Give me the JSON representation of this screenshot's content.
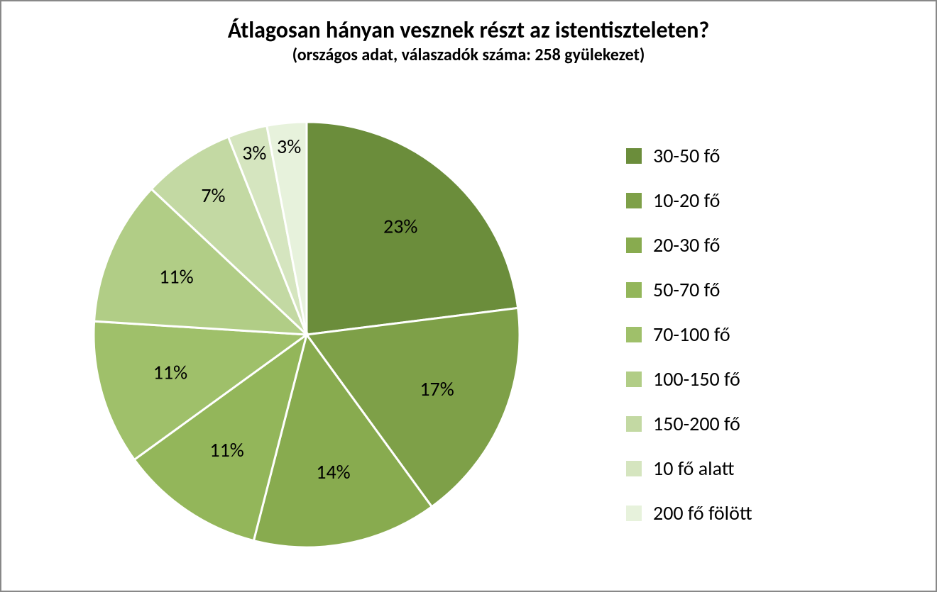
{
  "title": {
    "main": "Átlagosan hányan vesznek részt az istentiszteleten?",
    "sub": "(országos adat, válaszadók száma: 258 gyülekezet)",
    "main_fontsize": 32,
    "sub_fontsize": 24,
    "font_weight": 700,
    "color": "#000000"
  },
  "chart": {
    "type": "pie",
    "background_color": "#ffffff",
    "frame_border_color": "#888888",
    "slice_border_color": "#ffffff",
    "slice_border_width": 3,
    "label_fontsize": 28,
    "legend_fontsize": 28,
    "legend_swatch_size": 22,
    "slices": [
      {
        "label": "30-50 fő",
        "value": 23,
        "color": "#6b8d3b",
        "display": "23%"
      },
      {
        "label": "10-20 fő",
        "value": 17,
        "color": "#7ea048",
        "display": "17%"
      },
      {
        "label": "20-30 fő",
        "value": 14,
        "color": "#88ab4f",
        "display": "14%"
      },
      {
        "label": "50-70 fő",
        "value": 11,
        "color": "#93b65a",
        "display": "11%"
      },
      {
        "label": "70-100 fő",
        "value": 11,
        "color": "#9fc06a",
        "display": "11%"
      },
      {
        "label": "100-150 fő",
        "value": 11,
        "color": "#b1cd86",
        "display": "11%"
      },
      {
        "label": "150-200 fő",
        "value": 7,
        "color": "#c3d9a3",
        "display": "7%"
      },
      {
        "label": "10 fő alatt",
        "value": 3,
        "color": "#d5e5bf",
        "display": "3%"
      },
      {
        "label": "200 fő fölött",
        "value": 3,
        "color": "#e7f2dc",
        "display": "3%"
      }
    ]
  }
}
